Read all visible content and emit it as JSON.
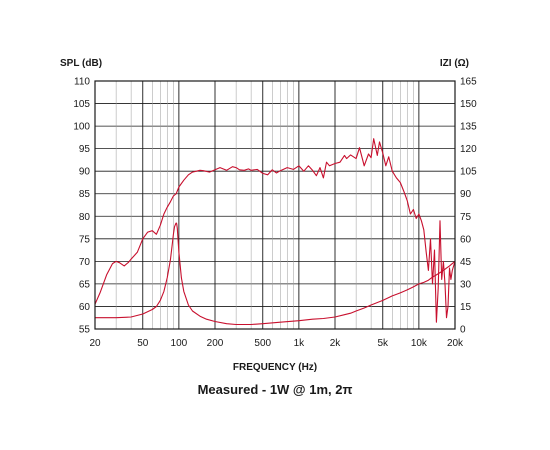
{
  "chart_data": {
    "type": "line",
    "left_axis_label": "SPL (dB)",
    "right_axis_label": "IZI (Ω)",
    "xlabel": "FREQUENCY (Hz)",
    "caption": "Measured - 1W @ 1m, 2π",
    "x_scale": "log",
    "xlim": [
      20,
      20000
    ],
    "ylim_left": [
      55,
      110
    ],
    "ylim_right": [
      0,
      165
    ],
    "x_ticks": [
      {
        "value": 20,
        "label": "20"
      },
      {
        "value": 50,
        "label": "50"
      },
      {
        "value": 100,
        "label": "100"
      },
      {
        "value": 200,
        "label": "200"
      },
      {
        "value": 500,
        "label": "500"
      },
      {
        "value": 1000,
        "label": "1k"
      },
      {
        "value": 2000,
        "label": "2k"
      },
      {
        "value": 5000,
        "label": "5k"
      },
      {
        "value": 10000,
        "label": "10k"
      },
      {
        "value": 20000,
        "label": "20k"
      }
    ],
    "y_ticks_left": [
      "110",
      "105",
      "100",
      "95",
      "90",
      "85",
      "80",
      "75",
      "70",
      "65",
      "60",
      "55"
    ],
    "y_ticks_right": [
      "165",
      "150",
      "135",
      "120",
      "105",
      "90",
      "75",
      "60",
      "45",
      "30",
      "15",
      "0"
    ],
    "grid": true,
    "line_color": "#c8102e",
    "series": [
      {
        "axis": "left",
        "x": [
          20,
          22,
          25,
          28,
          30,
          32,
          35,
          38,
          40,
          45,
          50,
          55,
          60,
          65,
          70,
          75,
          80,
          85,
          90,
          95,
          100,
          110,
          120,
          130,
          140,
          150,
          160,
          180,
          200,
          220,
          250,
          280,
          300,
          320,
          350,
          380,
          400,
          450,
          500,
          550,
          600,
          650,
          700,
          800,
          900,
          1000,
          1100,
          1200,
          1300,
          1400,
          1500,
          1600,
          1700,
          1800,
          2000,
          2200,
          2400,
          2500,
          2700,
          3000,
          3200,
          3500,
          3800,
          4000,
          4200,
          4500,
          4700,
          5000,
          5300,
          5600,
          6000,
          6500,
          7000,
          7500,
          8000,
          8500,
          9000,
          9500,
          10000,
          10500,
          11000,
          11500,
          12000,
          12500,
          13000,
          13500,
          14000,
          14500,
          15000,
          15500,
          16000,
          16500,
          17000,
          17500,
          18000,
          18500,
          19000,
          20000
        ],
        "values": [
          60.5,
          63,
          67,
          69.5,
          70,
          69.7,
          69,
          69.8,
          70.5,
          72,
          75,
          76.5,
          76.8,
          76,
          78,
          80.5,
          82,
          83.2,
          84.5,
          85,
          86.5,
          88,
          89.2,
          89.8,
          90,
          90.2,
          90.1,
          89.8,
          90.3,
          90.8,
          90.2,
          91,
          90.8,
          90.3,
          90.2,
          90.5,
          90.2,
          90.4,
          89.5,
          89.2,
          90.3,
          89.6,
          90.1,
          90.8,
          90.4,
          91.2,
          90,
          91.2,
          90.2,
          89,
          90.8,
          88.5,
          92,
          91.2,
          91.7,
          92,
          93.5,
          92.8,
          93.6,
          92.8,
          95.2,
          91.2,
          93.8,
          93,
          97.2,
          93.5,
          96.5,
          94,
          91.2,
          93.2,
          90,
          88.5,
          87.5,
          85.5,
          83.5,
          80.5,
          81.5,
          79.5,
          80.5,
          79,
          77,
          72,
          68,
          75,
          65,
          72.5,
          56.5,
          64,
          79,
          66,
          70,
          65,
          57.5,
          60,
          68.5,
          66,
          68,
          70
        ]
      },
      {
        "axis": "right",
        "x": [
          20,
          30,
          40,
          50,
          60,
          65,
          70,
          75,
          80,
          85,
          88,
          90,
          92,
          94,
          95,
          96,
          97,
          98,
          100,
          105,
          110,
          120,
          130,
          150,
          170,
          200,
          250,
          300,
          400,
          500,
          700,
          1000,
          1300,
          1600,
          2000,
          2400,
          2700,
          3000,
          3500,
          4000,
          5000,
          6000,
          7000,
          8000,
          9000,
          10000,
          11000,
          12000,
          13000,
          14000,
          15000,
          16000,
          17000,
          18000,
          19000,
          20000
        ],
        "values": [
          7.5,
          7.5,
          8,
          10,
          13,
          15,
          19,
          25,
          34,
          46,
          56,
          63,
          68,
          70,
          70.5,
          70,
          67,
          62,
          51,
          34,
          25,
          16,
          12,
          8.5,
          6.5,
          5,
          3.5,
          3,
          3,
          3.5,
          4.5,
          5.5,
          6.5,
          7,
          8,
          9.5,
          10.5,
          12,
          14,
          16,
          19,
          22,
          24,
          26,
          28,
          30,
          31,
          32.5,
          34.5,
          36,
          37.5,
          39,
          40.5,
          42,
          43.5,
          45
        ]
      }
    ]
  }
}
